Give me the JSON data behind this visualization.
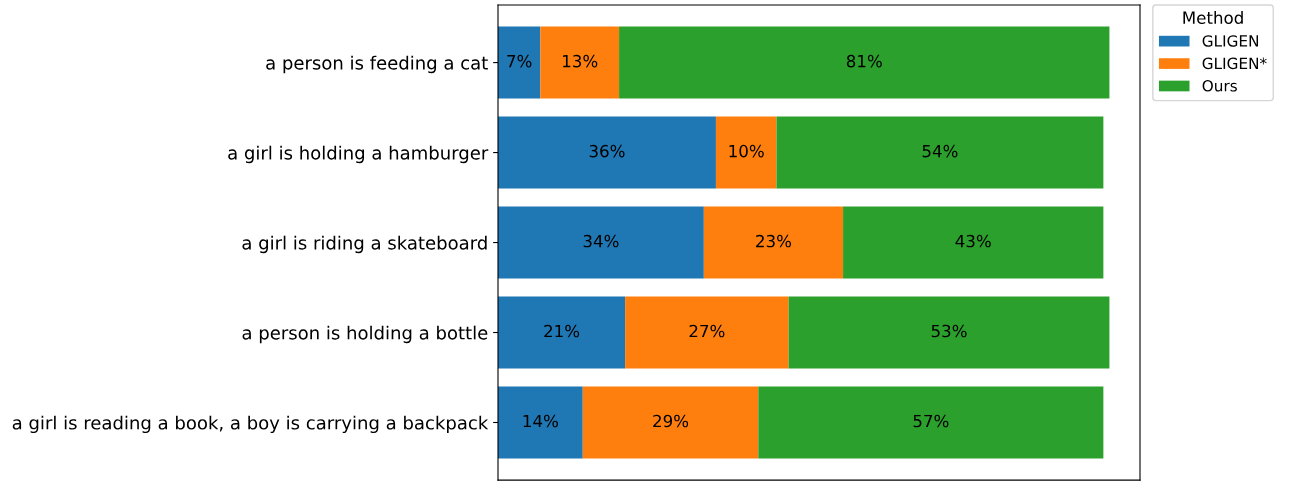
{
  "chart_data": {
    "type": "bar",
    "orientation": "horizontal",
    "stacked": true,
    "categories": [
      "a person is feeding a cat",
      "a girl is holding a hamburger",
      "a girl is riding a skateboard",
      "a person is holding a bottle",
      "a girl is reading a book, a boy is carrying a backpack"
    ],
    "series": [
      {
        "name": "GLIGEN",
        "color": "#1f77b4",
        "values": [
          7,
          36,
          34,
          21,
          14
        ],
        "value_labels": [
          "7%",
          "36%",
          "34%",
          "21%",
          "14%"
        ]
      },
      {
        "name": "GLIGEN*",
        "color": "#ff7f0e",
        "values": [
          13,
          10,
          23,
          27,
          29
        ],
        "value_labels": [
          "13%",
          "10%",
          "23%",
          "27%",
          "29%"
        ]
      },
      {
        "name": "Ours",
        "color": "#2ca02c",
        "values": [
          81,
          54,
          43,
          53,
          57
        ],
        "value_labels": [
          "81%",
          "54%",
          "43%",
          "53%",
          "57%"
        ]
      }
    ],
    "legend_title": "Method",
    "legend": "top right",
    "tick_labels": "y",
    "grid": false
  }
}
